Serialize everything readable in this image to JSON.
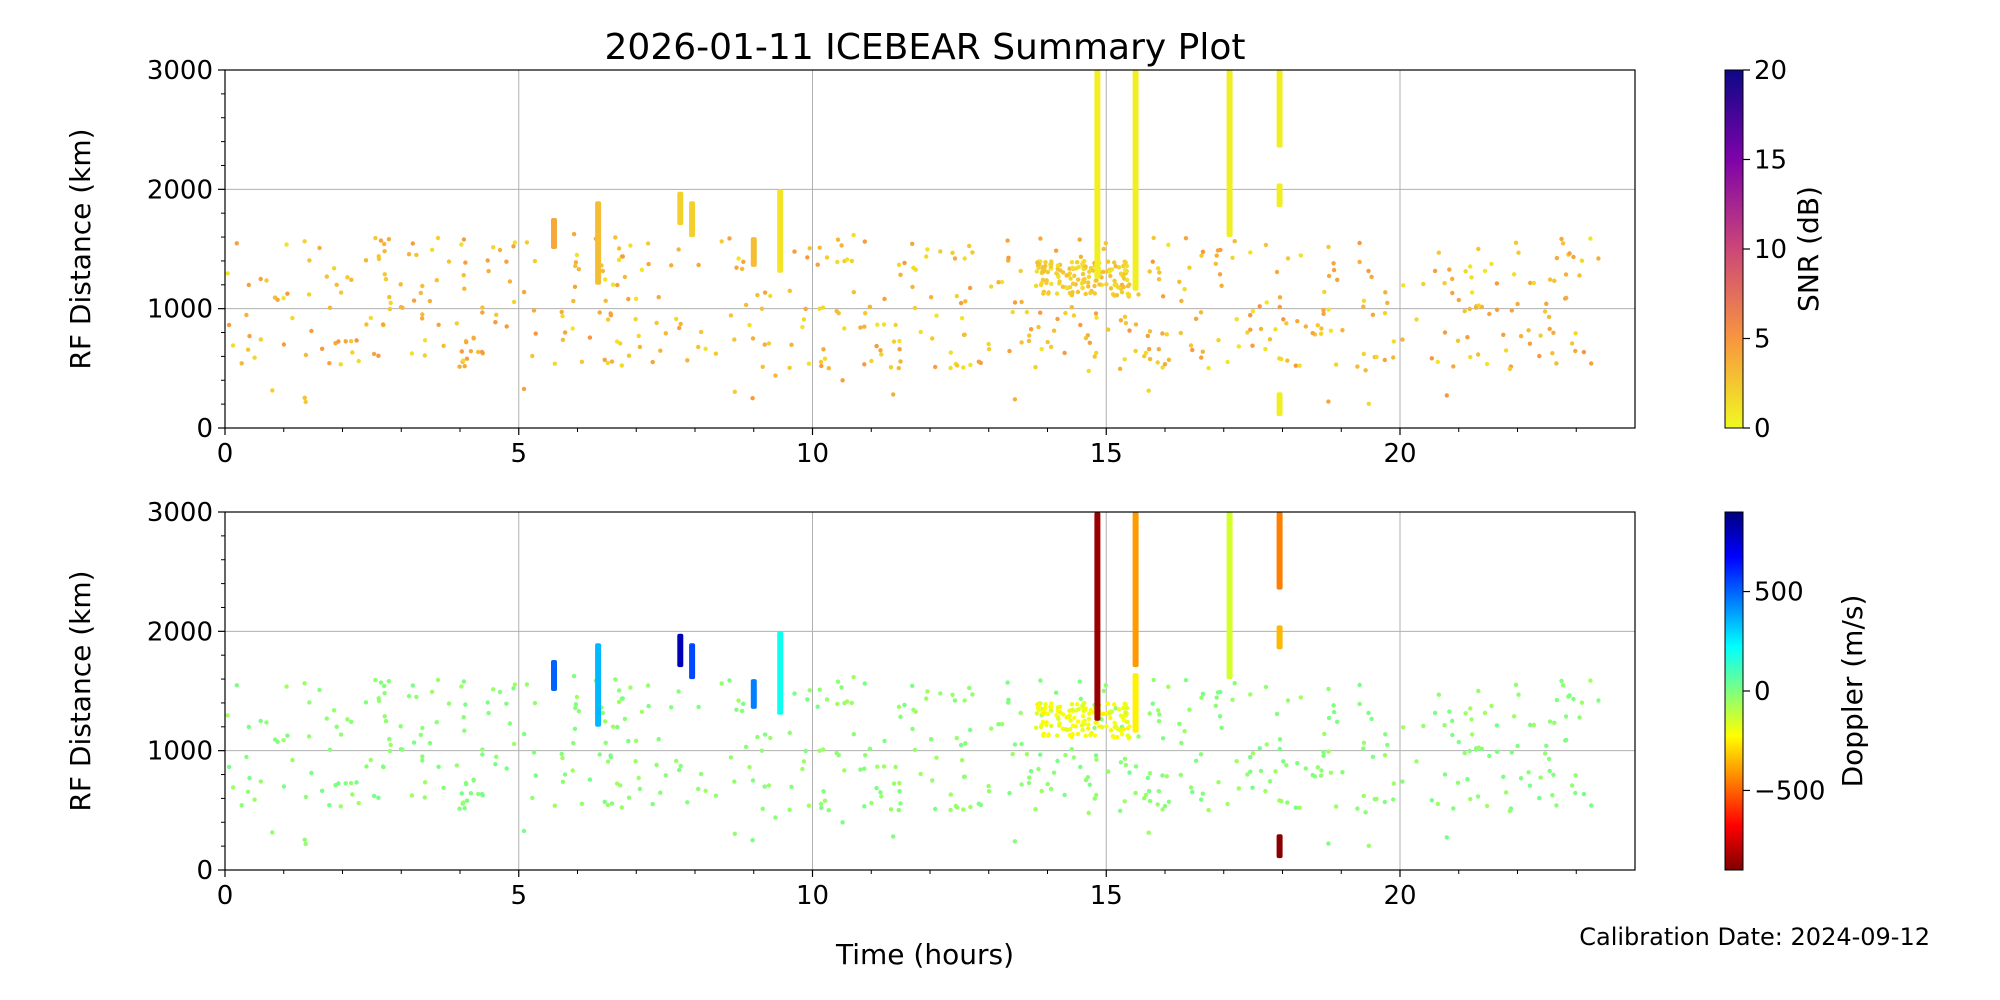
{
  "figure": {
    "title": "2026-01-11 ICEBEAR Summary Plot",
    "xlabel": "Time (hours)",
    "footer": "Calibration Date: 2024-09-12"
  },
  "chart_data": [
    {
      "type": "scatter",
      "panel": "top",
      "xlabel": "",
      "ylabel": "RF Distance (km)",
      "xlim": [
        0,
        24
      ],
      "ylim": [
        0,
        3000
      ],
      "x_ticks": [
        0,
        5,
        10,
        15,
        20
      ],
      "y_ticks": [
        0,
        1000,
        2000,
        3000
      ],
      "grid": true,
      "colorbar": {
        "label": "SNR (dB)",
        "range": [
          0,
          20
        ],
        "ticks": [
          0,
          5,
          10,
          15,
          20
        ],
        "colormap": "plasma_r",
        "stops": [
          "#f0f921",
          "#f89540",
          "#cc4778",
          "#7e03a8",
          "#0d0887"
        ]
      },
      "tracks": [
        {
          "x": 5.6,
          "y0": 1500,
          "y1": 1760,
          "snr": 4
        },
        {
          "x": 6.35,
          "y0": 1200,
          "y1": 1900,
          "snr": 3
        },
        {
          "x": 7.75,
          "y0": 1700,
          "y1": 1980,
          "snr": 2
        },
        {
          "x": 7.95,
          "y0": 1600,
          "y1": 1900,
          "snr": 2
        },
        {
          "x": 9.0,
          "y0": 1350,
          "y1": 1600,
          "snr": 3
        },
        {
          "x": 9.45,
          "y0": 1300,
          "y1": 2000,
          "snr": 1
        },
        {
          "x": 14.85,
          "y0": 1250,
          "y1": 3000,
          "snr": 0.5
        },
        {
          "x": 15.5,
          "y0": 1150,
          "y1": 3000,
          "snr": 0.5
        },
        {
          "x": 17.1,
          "y0": 1600,
          "y1": 3000,
          "snr": 0.5
        },
        {
          "x": 17.95,
          "y0": 100,
          "y1": 300,
          "snr": 0.5
        },
        {
          "x": 17.95,
          "y0": 2350,
          "y1": 3000,
          "snr": 0.5
        },
        {
          "x": 17.95,
          "y0": 1850,
          "y1": 2050,
          "snr": 0.5
        }
      ]
    },
    {
      "type": "scatter",
      "panel": "bottom",
      "xlabel": "Time (hours)",
      "ylabel": "RF Distance (km)",
      "xlim": [
        0,
        24
      ],
      "ylim": [
        0,
        3000
      ],
      "x_ticks": [
        0,
        5,
        10,
        15,
        20
      ],
      "y_ticks": [
        0,
        1000,
        2000,
        3000
      ],
      "grid": true,
      "colorbar": {
        "label": "Doppler (m/s)",
        "range": [
          -900,
          900
        ],
        "ticks": [
          -500,
          0,
          500
        ],
        "tick_labels": [
          "−500",
          "0",
          "500"
        ],
        "colormap": "jet_r",
        "stops": [
          "#7f0000",
          "#ff0000",
          "#ff7f00",
          "#ffff00",
          "#7fff7f",
          "#00ffff",
          "#007fff",
          "#0000ff",
          "#00007f"
        ]
      },
      "tracks": [
        {
          "x": 5.6,
          "y0": 1500,
          "y1": 1760,
          "doppler": 500
        },
        {
          "x": 6.35,
          "y0": 1200,
          "y1": 1900,
          "doppler": 350
        },
        {
          "x": 7.75,
          "y0": 1700,
          "y1": 1980,
          "doppler": 800
        },
        {
          "x": 7.95,
          "y0": 1600,
          "y1": 1900,
          "doppler": 550
        },
        {
          "x": 9.0,
          "y0": 1350,
          "y1": 1600,
          "doppler": 450
        },
        {
          "x": 9.45,
          "y0": 1300,
          "y1": 2000,
          "doppler": 200
        },
        {
          "x": 14.85,
          "y0": 1250,
          "y1": 3000,
          "doppler": -850
        },
        {
          "x": 15.5,
          "y0": 1700,
          "y1": 3000,
          "doppler": -400
        },
        {
          "x": 15.5,
          "y0": 1150,
          "y1": 1650,
          "doppler": -250
        },
        {
          "x": 17.1,
          "y0": 1600,
          "y1": 3000,
          "doppler": -150
        },
        {
          "x": 17.95,
          "y0": 100,
          "y1": 300,
          "doppler": -880
        },
        {
          "x": 17.95,
          "y0": 2350,
          "y1": 3000,
          "doppler": -450
        },
        {
          "x": 17.95,
          "y0": 1850,
          "y1": 2050,
          "doppler": -350
        }
      ]
    }
  ]
}
